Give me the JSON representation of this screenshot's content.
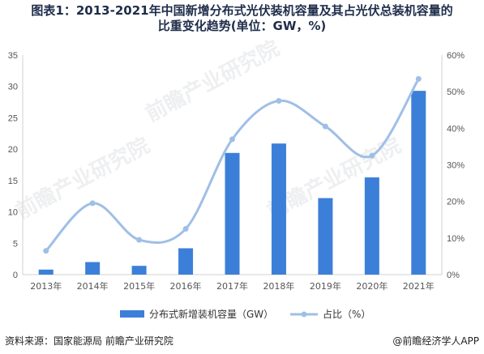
{
  "title_line1": "图表1：2013-2021年中国新增分布式光伏装机容量及其占光伏总装机容量的",
  "title_line2": "比重变化趋势(单位：GW，%)",
  "source": "资料来源：国家能源局 前瞻产业研究院",
  "credit": "@前瞻经济学人APP",
  "watermark": "前瞻产业研究院",
  "colors": {
    "bar": "#3c7fd9",
    "line": "#9fbfe6",
    "axis": "#d0d0d0",
    "text": "#555555"
  },
  "chart_data": {
    "type": "bar",
    "categories": [
      "2013年",
      "2014年",
      "2015年",
      "2016年",
      "2017年",
      "2018年",
      "2019年",
      "2020年",
      "2021年"
    ],
    "series": [
      {
        "name": "分布式新增装机容量（GW）",
        "type": "bar",
        "axis": "left",
        "values": [
          0.8,
          2.0,
          1.4,
          4.2,
          19.4,
          20.9,
          12.2,
          15.5,
          29.3
        ]
      },
      {
        "name": "占比（%）",
        "type": "line",
        "axis": "right",
        "values": [
          6.5,
          19.5,
          9.5,
          12.5,
          37.0,
          47.5,
          40.5,
          32.5,
          53.5
        ]
      }
    ],
    "y_left": {
      "min": 0,
      "max": 35,
      "ticks": [
        0,
        5,
        10,
        15,
        20,
        25,
        30,
        35
      ]
    },
    "y_right": {
      "min": 0,
      "max": 60,
      "ticks": [
        "0%",
        "10%",
        "20%",
        "30%",
        "40%",
        "50%",
        "60%"
      ]
    },
    "legend_position": "bottom",
    "grid": false
  }
}
